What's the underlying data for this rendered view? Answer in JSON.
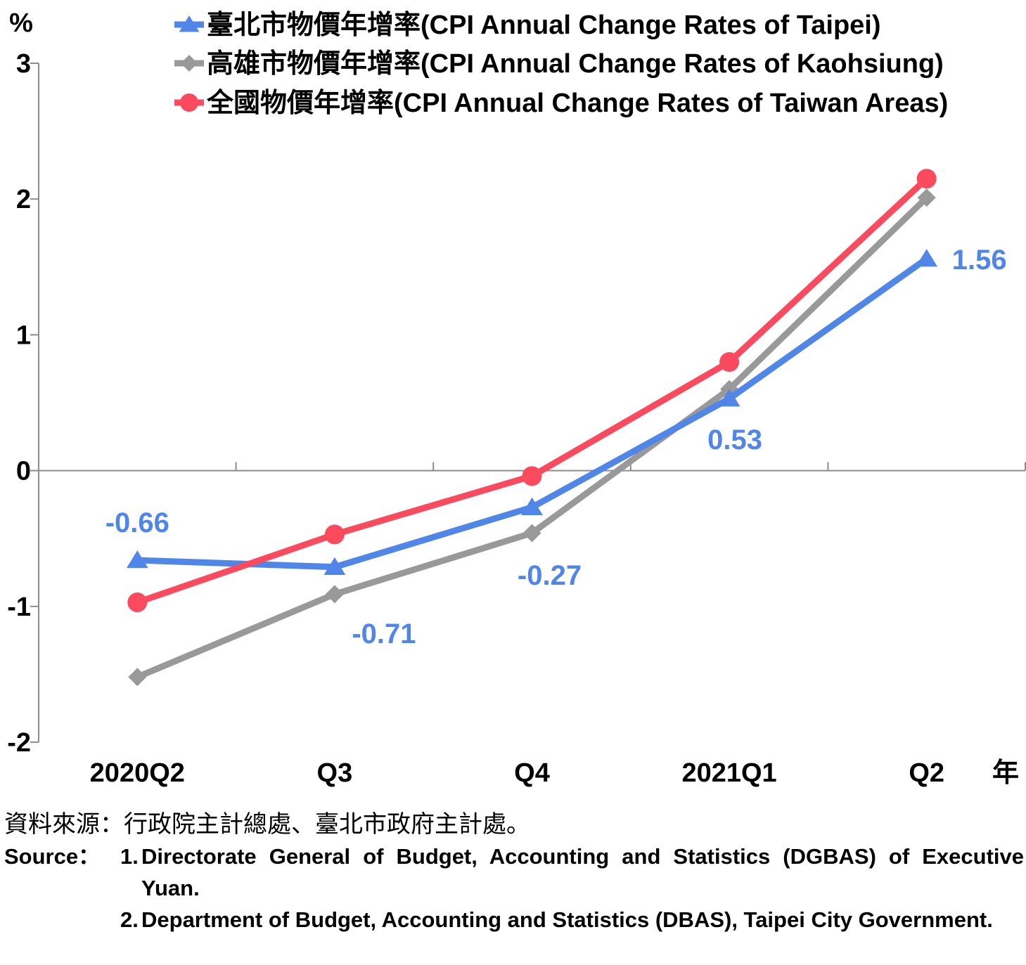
{
  "chart_data": {
    "type": "line",
    "ylabel": "%",
    "xlabel": "年",
    "ylim": [
      -2,
      3
    ],
    "yticks": [
      "-2",
      "-1",
      "0",
      "1",
      "2",
      "3"
    ],
    "categories": [
      "2020Q2",
      "Q3",
      "Q4",
      "2021Q1",
      "Q2"
    ],
    "legend_position": "top-right",
    "series": [
      {
        "name": "臺北市物價年增率(CPI Annual Change Rates of Taipei)",
        "marker": "triangle",
        "color": "#4f86e8",
        "values": [
          -0.66,
          -0.71,
          -0.27,
          0.53,
          1.56
        ],
        "labels": [
          "-0.66",
          "-0.71",
          "-0.27",
          "0.53",
          "1.56"
        ]
      },
      {
        "name": "高雄市物價年增率(CPI Annual Change Rates of Kaohsiung)",
        "marker": "diamond",
        "color": "#999999",
        "values": [
          -1.52,
          -0.91,
          -0.46,
          0.6,
          2.01
        ]
      },
      {
        "name": "全國物價年增率(CPI Annual Change Rates of Taiwan Areas)",
        "marker": "circle",
        "color": "#f94a5e",
        "values": [
          -0.97,
          -0.47,
          -0.04,
          0.8,
          2.15
        ]
      }
    ]
  },
  "source": {
    "zh": "資料來源：行政院主計總處、臺北市政府主計處。",
    "en_label": "Source：",
    "items": [
      {
        "num": "1.",
        "text": "Directorate General of Budget, Accounting and Statistics (DGBAS) of Executive Yuan."
      },
      {
        "num": "2.",
        "text": "Department of Budget, Accounting and Statistics (DBAS), Taipei City Government."
      }
    ]
  }
}
